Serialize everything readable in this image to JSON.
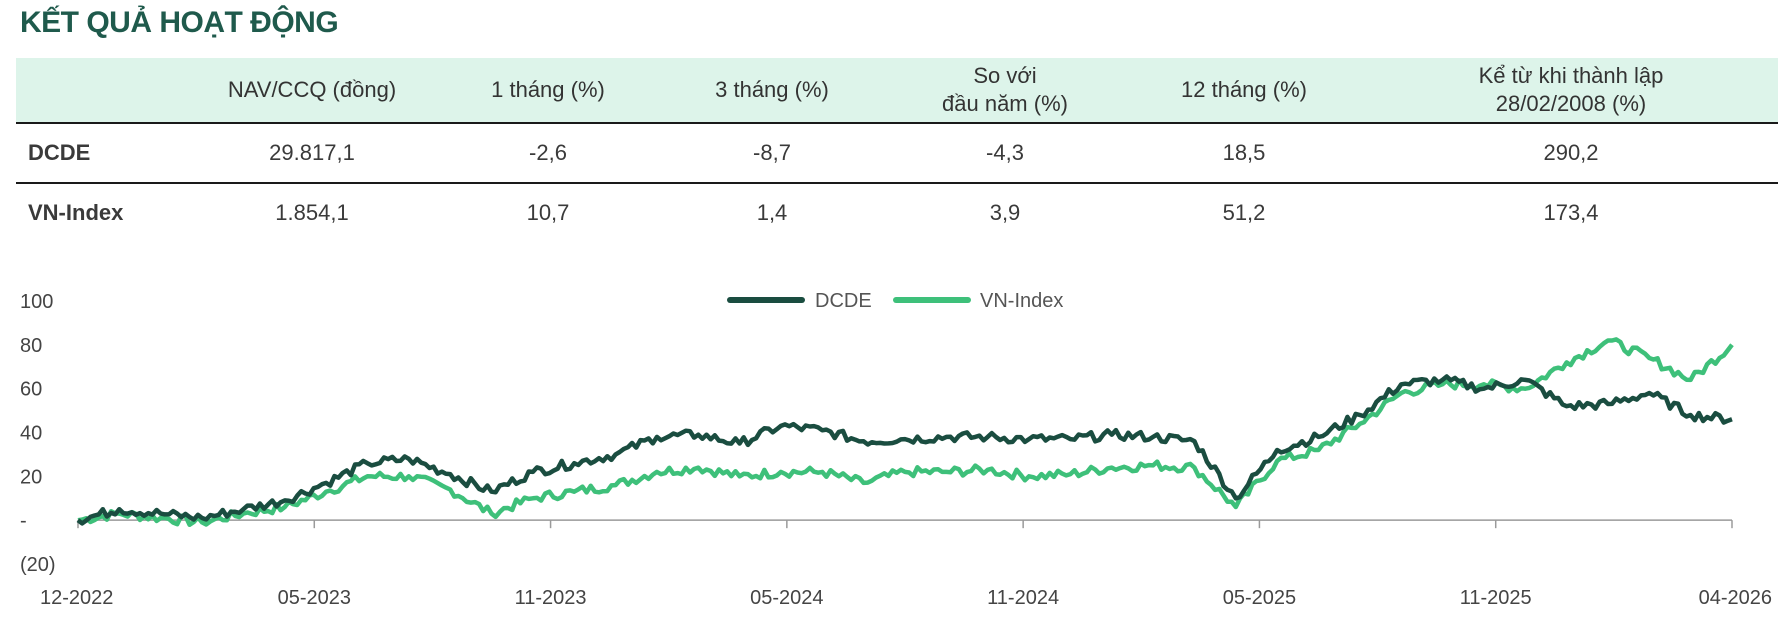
{
  "title": "KẾT QUẢ HOẠT ĐỘNG",
  "table": {
    "headers": [
      "",
      "NAV/CCQ (đồng)",
      "1 tháng (%)",
      "3 tháng (%)",
      "So với\nđầu năm (%)",
      "12 tháng (%)",
      "Kể từ khi thành lập\n28/02/2008 (%)"
    ],
    "rows": [
      {
        "label": "DCDE",
        "values": [
          "29.817,1",
          "-2,6",
          "-8,7",
          "-4,3",
          "18,5",
          "290,2"
        ]
      },
      {
        "label": "VN-Index",
        "values": [
          "1.854,1",
          "10,7",
          "1,4",
          "3,9",
          "51,2",
          "173,4"
        ]
      }
    ]
  },
  "chart_data": {
    "type": "line",
    "y_ticks": [
      "100",
      "80",
      "60",
      "40",
      "20",
      "-",
      "(20)"
    ],
    "ylim": [
      -20,
      100
    ],
    "x_ticks": [
      "12-2022",
      "05-2023",
      "11-2023",
      "05-2024",
      "11-2024",
      "05-2025",
      "11-2025",
      "04-2026"
    ],
    "x": [
      "12-2022",
      "01-2023",
      "02-2023",
      "03-2023",
      "04-2023",
      "05-2023",
      "06-2023",
      "07-2023",
      "08-2023",
      "09-2023",
      "10-2023",
      "11-2023",
      "12-2023",
      "01-2024",
      "02-2024",
      "03-2024",
      "04-2024",
      "05-2024",
      "06-2024",
      "07-2024",
      "08-2024",
      "09-2024",
      "10-2024",
      "11-2024",
      "12-2024",
      "01-2025",
      "02-2025",
      "03-2025",
      "04-2025",
      "05-2025",
      "06-2025",
      "07-2025",
      "08-2025",
      "09-2025",
      "10-2025",
      "11-2025",
      "12-2025",
      "01-2026",
      "02-2026",
      "03-2026",
      "04-2026"
    ],
    "series": [
      {
        "name": "DCDE",
        "color": "#1a4d40",
        "values": [
          0,
          5,
          3,
          1,
          5,
          9,
          17,
          26,
          28,
          21,
          13,
          22,
          26,
          30,
          38,
          39,
          35,
          43,
          41,
          36,
          37,
          38,
          38,
          37,
          37,
          39,
          38,
          36,
          10,
          32,
          38,
          48,
          62,
          64,
          60,
          64,
          52,
          53,
          58,
          48,
          46
        ]
      },
      {
        "name": "VN-Index",
        "color": "#3ec07a",
        "values": [
          0,
          3,
          1,
          -1,
          3,
          6,
          13,
          20,
          20,
          14,
          3,
          10,
          13,
          16,
          22,
          24,
          20,
          22,
          22,
          17,
          22,
          22,
          23,
          20,
          21,
          24,
          25,
          24,
          6,
          27,
          32,
          44,
          58,
          62,
          62,
          60,
          72,
          82,
          74,
          64,
          80
        ]
      }
    ]
  }
}
